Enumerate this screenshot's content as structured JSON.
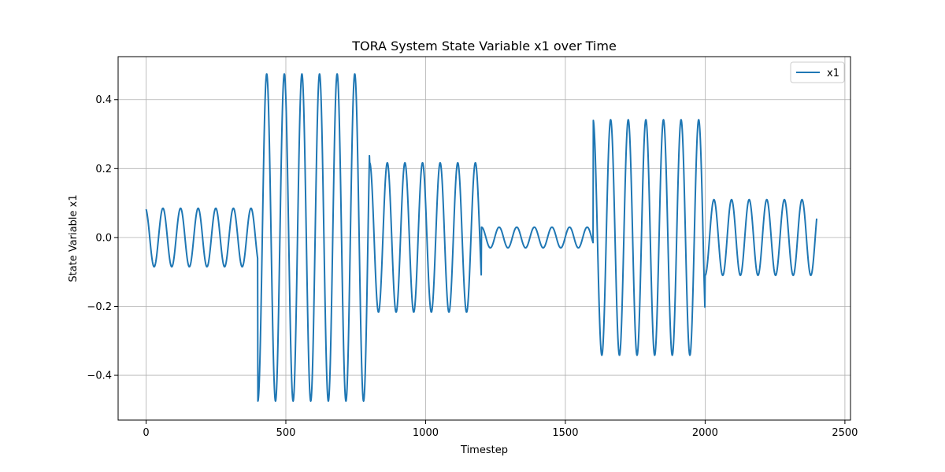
{
  "chart_data": {
    "type": "line",
    "title": "TORA System State Variable x1 over Time",
    "xlabel": "Timestep",
    "ylabel": "State Variable x1",
    "xlim": [
      -100,
      2520
    ],
    "ylim": [
      -0.53,
      0.525
    ],
    "xticks": [
      0,
      500,
      1000,
      1500,
      2000,
      2500
    ],
    "yticks": [
      -0.4,
      -0.2,
      0.0,
      0.2,
      0.4
    ],
    "xtick_labels": [
      "0",
      "500",
      "1000",
      "1500",
      "2000",
      "2500"
    ],
    "ytick_labels": [
      "−0.4",
      "−0.2",
      "0.0",
      "0.2",
      "0.4"
    ],
    "grid": true,
    "legend": {
      "position": "top-right"
    },
    "series": [
      {
        "name": "x1",
        "color": "#1f77b4",
        "segments": [
          {
            "x_start": 0,
            "x_end": 400,
            "start": 0.082,
            "amplitude": 0.085,
            "period": 63
          },
          {
            "x_start": 400,
            "x_end": 800,
            "start": -0.475,
            "amplitude": 0.475,
            "period": 63
          },
          {
            "x_start": 800,
            "x_end": 1200,
            "start": 0.248,
            "amplitude": 0.217,
            "period": 63
          },
          {
            "x_start": 1200,
            "x_end": 1600,
            "start": 0.093,
            "amplitude": 0.03,
            "period": 63
          },
          {
            "x_start": 1600,
            "x_end": 2000,
            "start": 0.34,
            "amplitude": 0.342,
            "period": 63
          },
          {
            "x_start": 2000,
            "x_end": 2400,
            "start": -0.185,
            "amplitude": 0.11,
            "period": 63
          }
        ]
      }
    ]
  }
}
